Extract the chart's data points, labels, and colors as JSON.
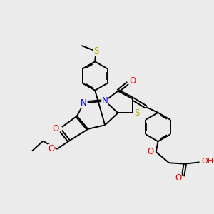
{
  "bg_color": "#ebebeb",
  "bond_color": "#000000",
  "bond_width": 1.4,
  "N_color": "#0000ee",
  "S_color": "#bbaa00",
  "O_color": "#ee0000",
  "figsize": [
    3.0,
    3.0
  ],
  "dpi": 100,
  "xlim": [
    0,
    10
  ],
  "ylim": [
    0,
    10
  ]
}
